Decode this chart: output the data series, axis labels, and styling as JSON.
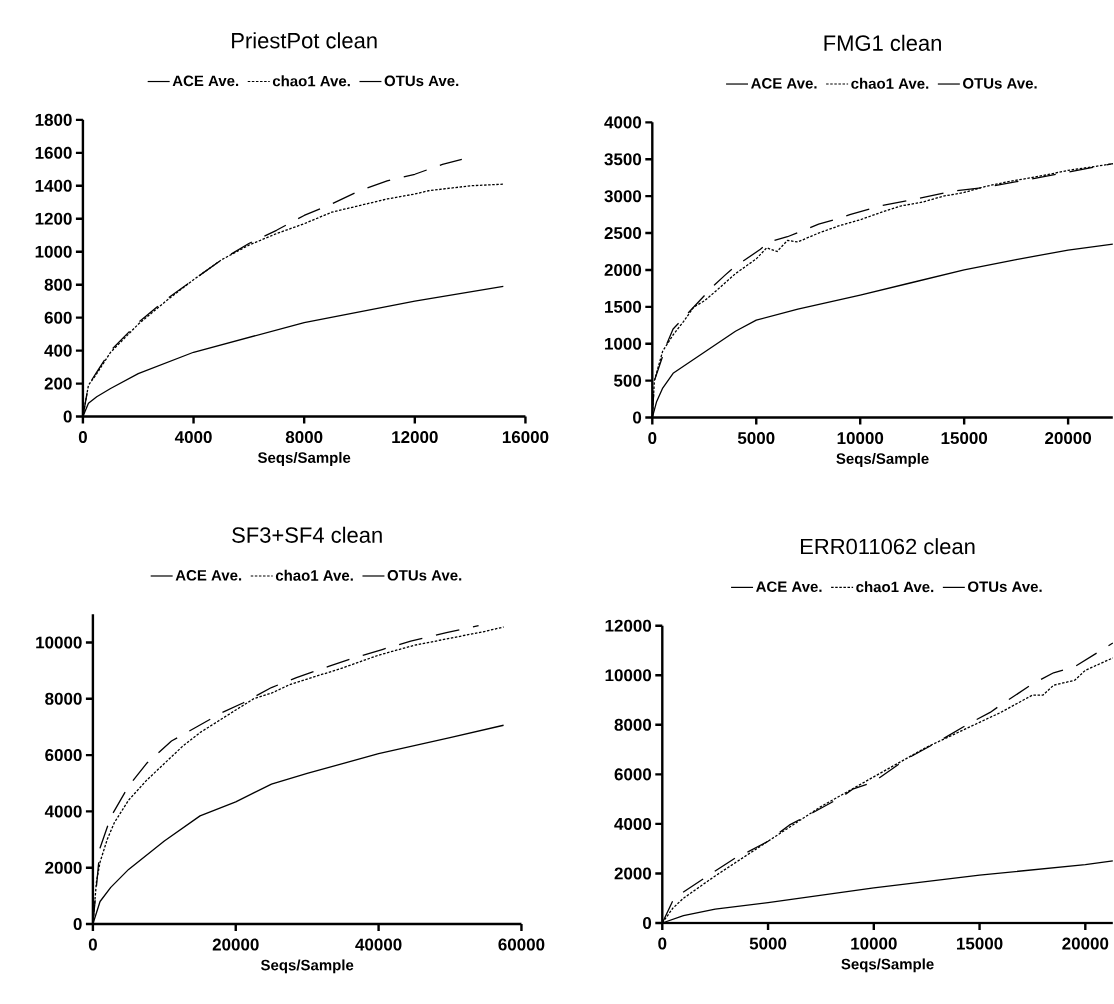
{
  "chart_data": [
    {
      "type": "line",
      "title": "PriestPot clean",
      "xlabel": "Seqs/Sample",
      "legend": "top",
      "xlim": [
        0,
        16000
      ],
      "ylim": [
        0,
        1800
      ],
      "xticks": [
        0,
        4000,
        8000,
        12000,
        16000
      ],
      "yticks": [
        0,
        200,
        400,
        600,
        800,
        1000,
        1200,
        1400,
        1600,
        1800
      ],
      "series": [
        {
          "name": "ACE Ave.",
          "color": "#000000",
          "line_style": "dashed",
          "x": [
            0,
            200,
            500,
            1000,
            2000,
            3000,
            4000,
            5000,
            6000,
            7000,
            8000,
            9000,
            10000,
            11000,
            12000,
            13000,
            13700
          ],
          "values": [
            0,
            190,
            270,
            400,
            570,
            710,
            830,
            950,
            1050,
            1130,
            1220,
            1290,
            1370,
            1430,
            1470,
            1530,
            1560
          ]
        },
        {
          "name": "chao1 Ave.",
          "color": "#000000",
          "line_style": "dotted",
          "x": [
            0,
            200,
            500,
            1000,
            2000,
            3000,
            4000,
            5000,
            6000,
            7000,
            8000,
            9000,
            10000,
            11000,
            12000,
            12500,
            13000,
            14000,
            15200
          ],
          "values": [
            0,
            190,
            260,
            390,
            560,
            700,
            830,
            950,
            1040,
            1110,
            1170,
            1240,
            1280,
            1320,
            1350,
            1370,
            1380,
            1400,
            1410
          ]
        },
        {
          "name": "OTUs Ave.",
          "color": "#000000",
          "line_style": "solid",
          "x": [
            0,
            200,
            500,
            1000,
            2000,
            4000,
            8000,
            12000,
            15200
          ],
          "values": [
            0,
            80,
            120,
            170,
            260,
            390,
            570,
            700,
            790
          ]
        }
      ]
    },
    {
      "type": "line",
      "title": "FMG1 clean",
      "xlabel": "Seqs/Sample",
      "legend": "top",
      "xlim": [
        0,
        22150
      ],
      "ylim": [
        0,
        4000
      ],
      "xticks": [
        0,
        5000,
        10000,
        15000,
        20000
      ],
      "yticks": [
        0,
        500,
        1000,
        1500,
        2000,
        2500,
        3000,
        3500,
        4000
      ],
      "series": [
        {
          "name": "ACE Ave.",
          "color": "#000000",
          "line_style": "dashed",
          "x": [
            0,
            100,
            700,
            1000,
            1500,
            2500,
            3000,
            3500,
            3900,
            5200,
            5600,
            6500,
            8000,
            9000,
            9500,
            11000,
            12500,
            14500,
            16000,
            18000,
            19500,
            21000,
            22150
          ],
          "values": [
            0,
            500,
            1000,
            1200,
            1350,
            1650,
            1800,
            1930,
            2030,
            2280,
            2380,
            2450,
            2620,
            2700,
            2750,
            2870,
            2950,
            3070,
            3120,
            3220,
            3300,
            3380,
            3440
          ]
        },
        {
          "name": "chao1 Ave.",
          "color": "#000000",
          "line_style": "dotted",
          "x": [
            0,
            100,
            500,
            1000,
            1500,
            2000,
            2500,
            3000,
            4000,
            5000,
            5500,
            6000,
            6500,
            7000,
            8000,
            9000,
            10000,
            11000,
            12000,
            13000,
            14000,
            15000,
            16000,
            17000,
            18000,
            19000,
            20000,
            21000,
            22150
          ],
          "values": [
            0,
            500,
            900,
            1120,
            1300,
            1500,
            1580,
            1700,
            1950,
            2150,
            2300,
            2250,
            2400,
            2380,
            2500,
            2600,
            2680,
            2780,
            2870,
            2920,
            3000,
            3050,
            3130,
            3190,
            3240,
            3290,
            3350,
            3390,
            3440
          ]
        },
        {
          "name": "OTUs Ave.",
          "color": "#000000",
          "line_style": "solid",
          "x": [
            0,
            200,
            500,
            1000,
            2000,
            3000,
            4000,
            5000,
            7000,
            10000,
            12500,
            15000,
            17500,
            20000,
            22150
          ],
          "values": [
            0,
            210,
            400,
            600,
            790,
            980,
            1170,
            1320,
            1470,
            1660,
            1830,
            2000,
            2140,
            2270,
            2350
          ]
        }
      ]
    },
    {
      "type": "line",
      "title": "SF3+SF4 clean",
      "xlabel": "Seqs/Sample",
      "legend": "top",
      "xlim": [
        0,
        60000
      ],
      "ylim": [
        0,
        11000
      ],
      "xticks": [
        0,
        20000,
        40000,
        60000
      ],
      "yticks": [
        0,
        2000,
        4000,
        6000,
        8000,
        10000
      ],
      "series": [
        {
          "name": "ACE Ave.",
          "color": "#000000",
          "line_style": "dashed",
          "x": [
            0,
            1000,
            2500,
            5000,
            7500,
            11000,
            14500,
            18000,
            21000,
            25000,
            28500,
            33000,
            36500,
            40500,
            44500,
            49500,
            54000
          ],
          "values": [
            0,
            2700,
            3800,
            4900,
            5700,
            6500,
            7000,
            7500,
            7850,
            8400,
            8750,
            9150,
            9450,
            9750,
            10050,
            10350,
            10600
          ]
        },
        {
          "name": "chao1 Ave.",
          "color": "#000000",
          "line_style": "dotted",
          "x": [
            0,
            500,
            1000,
            2000,
            3000,
            5000,
            7500,
            10000,
            12500,
            15000,
            17500,
            20000,
            22500,
            25000,
            27500,
            30000,
            32500,
            35000,
            40000,
            45000,
            50000,
            55000,
            57500
          ],
          "values": [
            0,
            1500,
            2200,
            3000,
            3600,
            4400,
            5100,
            5700,
            6300,
            6800,
            7200,
            7600,
            8000,
            8200,
            8500,
            8700,
            8900,
            9100,
            9550,
            9900,
            10150,
            10400,
            10550
          ]
        },
        {
          "name": "OTUs Ave.",
          "color": "#000000",
          "line_style": "solid",
          "x": [
            0,
            1000,
            2500,
            5000,
            10000,
            15000,
            20000,
            25000,
            30000,
            40000,
            50000,
            57500
          ],
          "values": [
            0,
            800,
            1300,
            1940,
            2950,
            3840,
            4340,
            4970,
            5350,
            6050,
            6620,
            7060
          ]
        }
      ]
    },
    {
      "type": "line",
      "title": "ERR011062 clean",
      "xlabel": "Seqs/Sample",
      "legend": "top",
      "xlim": [
        0,
        21300
      ],
      "ylim": [
        0,
        12000
      ],
      "xticks": [
        0,
        5000,
        10000,
        15000,
        20000
      ],
      "yticks": [
        0,
        2000,
        4000,
        6000,
        8000,
        10000,
        12000
      ],
      "series": [
        {
          "name": "ACE Ave.",
          "color": "#000000",
          "line_style": "dashed",
          "x": [
            0,
            500,
            1000,
            2500,
            3500,
            4000,
            5000,
            6000,
            7000,
            8500,
            9000,
            10000,
            11500,
            13000,
            14500,
            15500,
            16000,
            17500,
            18500,
            19500,
            21300
          ],
          "values": [
            0,
            900,
            1250,
            2100,
            2650,
            2850,
            3300,
            3950,
            4400,
            5100,
            5400,
            5700,
            6600,
            7300,
            8050,
            8500,
            8800,
            9650,
            10100,
            10350,
            11300
          ]
        },
        {
          "name": "chao1 Ave.",
          "color": "#000000",
          "line_style": "dotted",
          "x": [
            0,
            500,
            1000,
            2500,
            5000,
            7500,
            10000,
            12500,
            14000,
            15000,
            16000,
            17500,
            18000,
            18500,
            19500,
            20000,
            21300
          ],
          "values": [
            0,
            600,
            1000,
            1900,
            3300,
            4700,
            5900,
            7100,
            7700,
            8100,
            8500,
            9200,
            9200,
            9600,
            9800,
            10200,
            10700
          ]
        },
        {
          "name": "OTUs Ave.",
          "color": "#000000",
          "line_style": "solid",
          "x": [
            0,
            1000,
            2500,
            5000,
            10000,
            15000,
            20000,
            21300
          ],
          "values": [
            0,
            300,
            560,
            820,
            1420,
            1930,
            2360,
            2510
          ]
        }
      ]
    }
  ]
}
